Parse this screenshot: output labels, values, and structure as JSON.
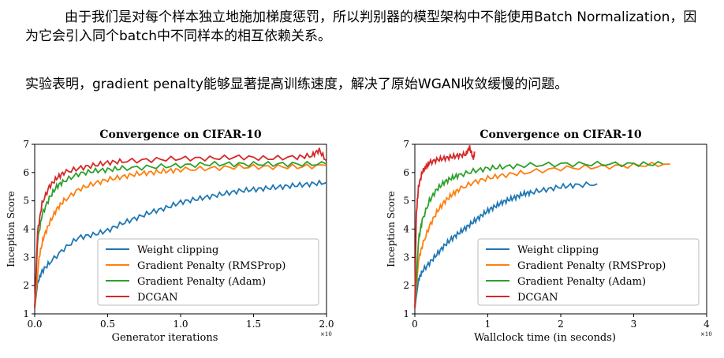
{
  "text": {
    "paragraph1": "由于我们是对每个样本独立地施加梯度惩罚，所以判别器的模型架构中不能使用Batch Normalization，因为它会引入同个batch中不同样本的相互依赖关系。",
    "paragraph2": "实验表明，gradient penalty能够显著提高训练速度，解决了原始WGAN收敛缓慢的问题。"
  },
  "chart_data": [
    {
      "type": "line",
      "title": "Convergence on CIFAR-10",
      "xlabel": "Generator iterations",
      "ylabel": "Inception Score",
      "x_multiplier": "×10",
      "xlim": [
        0,
        2.0
      ],
      "ylim": [
        1,
        7
      ],
      "xticks": [
        "0.0",
        "0.5",
        "1.0",
        "1.5",
        "2.0"
      ],
      "yticks": [
        "1",
        "2",
        "3",
        "4",
        "5",
        "6",
        "7"
      ],
      "legend_position": "bottom-right",
      "series": [
        {
          "name": "Weight clipping",
          "color": "#1f77b4",
          "x": [
            0,
            0.02,
            0.05,
            0.1,
            0.2,
            0.3,
            0.4,
            0.5,
            0.6,
            0.7,
            0.8,
            0.9,
            1.0,
            1.1,
            1.2,
            1.3,
            1.4,
            1.5,
            1.6,
            1.7,
            1.8,
            1.9,
            2.0
          ],
          "y": [
            1.2,
            2.1,
            2.5,
            2.8,
            3.3,
            3.7,
            3.8,
            3.95,
            4.2,
            4.4,
            4.6,
            4.75,
            4.95,
            5.05,
            5.15,
            5.25,
            5.35,
            5.4,
            5.45,
            5.5,
            5.55,
            5.6,
            5.65
          ]
        },
        {
          "name": "Gradient Penalty (RMSProp)",
          "color": "#ff7f0e",
          "x": [
            0,
            0.03,
            0.06,
            0.1,
            0.15,
            0.2,
            0.3,
            0.4,
            0.5,
            0.6,
            0.7,
            0.8,
            0.9,
            1.0,
            1.2,
            1.4,
            1.6,
            1.8,
            2.0
          ],
          "y": [
            1.2,
            3.0,
            3.7,
            4.2,
            4.7,
            5.0,
            5.4,
            5.6,
            5.75,
            5.85,
            5.95,
            6.0,
            6.05,
            6.1,
            6.15,
            6.2,
            6.2,
            6.2,
            6.25
          ]
        },
        {
          "name": "Gradient Penalty (Adam)",
          "color": "#2ca02c",
          "x": [
            0,
            0.02,
            0.05,
            0.1,
            0.15,
            0.2,
            0.3,
            0.4,
            0.5,
            0.6,
            0.8,
            1.0,
            1.2,
            1.4,
            1.6,
            1.8,
            2.0
          ],
          "y": [
            1.2,
            3.6,
            4.5,
            5.1,
            5.5,
            5.7,
            5.95,
            6.05,
            6.1,
            6.15,
            6.2,
            6.25,
            6.3,
            6.3,
            6.3,
            6.3,
            6.3
          ]
        },
        {
          "name": "DCGAN",
          "color": "#d62728",
          "x": [
            0,
            0.02,
            0.05,
            0.1,
            0.15,
            0.2,
            0.3,
            0.4,
            0.5,
            0.6,
            0.8,
            1.0,
            1.2,
            1.4,
            1.6,
            1.8,
            1.9,
            1.95,
            2.0
          ],
          "y": [
            1.2,
            3.9,
            4.9,
            5.5,
            5.8,
            6.0,
            6.15,
            6.25,
            6.35,
            6.4,
            6.45,
            6.5,
            6.5,
            6.55,
            6.5,
            6.55,
            6.6,
            6.8,
            6.4
          ]
        }
      ]
    },
    {
      "type": "line",
      "title": "Convergence on CIFAR-10",
      "xlabel": "Wallclock time (in seconds)",
      "ylabel": "Inception Score",
      "x_multiplier": "×10",
      "xlim": [
        0,
        4
      ],
      "ylim": [
        1,
        7
      ],
      "xticks": [
        "0",
        "1",
        "2",
        "3",
        "4"
      ],
      "yticks": [
        "1",
        "2",
        "3",
        "4",
        "5",
        "6",
        "7"
      ],
      "legend_position": "bottom-right",
      "series": [
        {
          "name": "Weight clipping",
          "color": "#1f77b4",
          "x": [
            0,
            0.05,
            0.1,
            0.2,
            0.3,
            0.4,
            0.5,
            0.6,
            0.7,
            0.8,
            0.9,
            1.0,
            1.1,
            1.2,
            1.3,
            1.4,
            1.5,
            1.6,
            1.8,
            2.0,
            2.2,
            2.5
          ],
          "y": [
            1.2,
            2.2,
            2.5,
            2.8,
            3.1,
            3.4,
            3.65,
            3.85,
            4.05,
            4.25,
            4.45,
            4.65,
            4.8,
            4.95,
            5.05,
            5.15,
            5.25,
            5.3,
            5.4,
            5.5,
            5.55,
            5.6
          ]
        },
        {
          "name": "Gradient Penalty (RMSProp)",
          "color": "#ff7f0e",
          "x": [
            0,
            0.05,
            0.1,
            0.2,
            0.3,
            0.4,
            0.5,
            0.6,
            0.8,
            1.0,
            1.2,
            1.5,
            2.0,
            2.5,
            3.0,
            3.5
          ],
          "y": [
            1.2,
            2.9,
            3.4,
            4.1,
            4.6,
            4.95,
            5.2,
            5.4,
            5.65,
            5.8,
            5.9,
            6.0,
            6.15,
            6.2,
            6.25,
            6.3
          ]
        },
        {
          "name": "Gradient Penalty (Adam)",
          "color": "#2ca02c",
          "x": [
            0,
            0.05,
            0.1,
            0.2,
            0.3,
            0.4,
            0.5,
            0.6,
            0.8,
            1.0,
            1.2,
            1.5,
            2.0,
            2.5,
            3.0,
            3.4
          ],
          "y": [
            1.2,
            3.6,
            4.3,
            5.0,
            5.4,
            5.65,
            5.8,
            5.9,
            6.05,
            6.15,
            6.2,
            6.25,
            6.3,
            6.3,
            6.3,
            6.3
          ]
        },
        {
          "name": "DCGAN",
          "color": "#d62728",
          "x": [
            0,
            0.02,
            0.05,
            0.1,
            0.15,
            0.2,
            0.3,
            0.4,
            0.5,
            0.6,
            0.7,
            0.75,
            0.8,
            0.82
          ],
          "y": [
            1.2,
            4.5,
            5.5,
            6.0,
            6.2,
            6.35,
            6.45,
            6.5,
            6.55,
            6.6,
            6.65,
            6.9,
            6.5,
            6.7
          ]
        }
      ]
    }
  ]
}
